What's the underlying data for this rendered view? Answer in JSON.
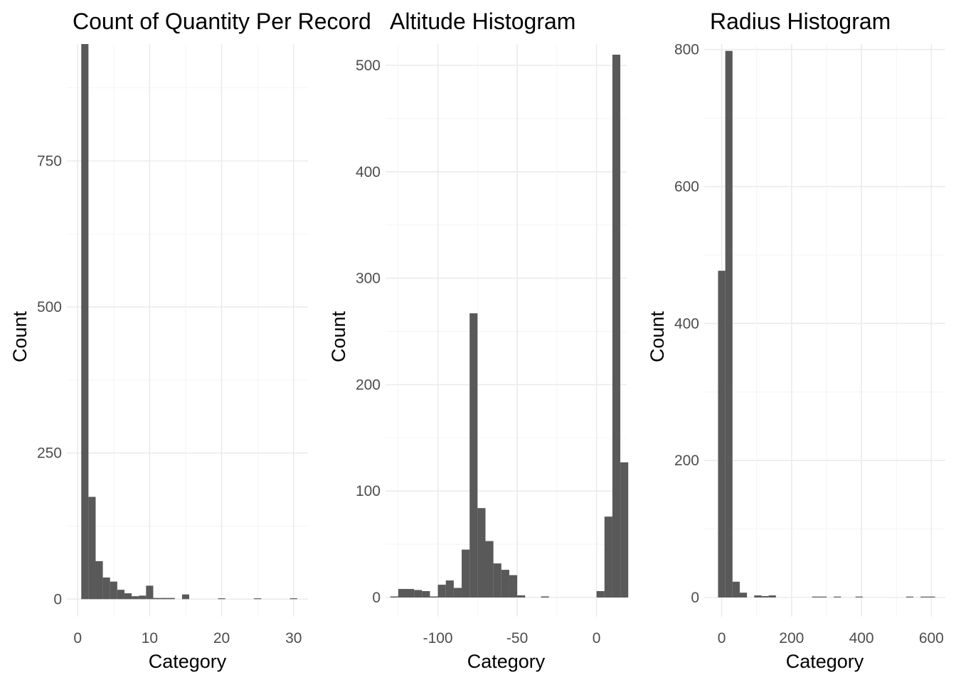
{
  "chart_data": [
    {
      "type": "bar",
      "title": "Count of Quantity Per Record",
      "xlabel": "Category",
      "ylabel": "Count",
      "xlim": [
        -1.5,
        32.0
      ],
      "ylim": [
        -30,
        950
      ],
      "xticks": [
        0,
        10,
        20,
        30
      ],
      "yticks": [
        0,
        250,
        500,
        750
      ],
      "grid": true,
      "bin_width": 1.0,
      "x": [
        1,
        2,
        3,
        4,
        5,
        6,
        7,
        8,
        9,
        10,
        11,
        12,
        13,
        14,
        15,
        16,
        17,
        18,
        19,
        20,
        21,
        22,
        23,
        24,
        25,
        26,
        27,
        28,
        29,
        30
      ],
      "values": [
        950,
        175,
        65,
        37,
        30,
        16,
        10,
        5,
        6,
        23,
        2,
        2,
        2,
        0,
        8,
        0,
        0,
        0,
        0,
        1,
        0,
        0,
        0,
        0,
        1,
        0,
        0,
        0,
        0,
        1
      ]
    },
    {
      "type": "bar",
      "title": "Altitude Histogram",
      "xlabel": "Category",
      "ylabel": "Count",
      "xlim": [
        -133,
        19
      ],
      "ylim": [
        -18,
        520
      ],
      "xticks": [
        -100,
        -50,
        0
      ],
      "xtick_labels": [
        "-100",
        "-50",
        "0"
      ],
      "yticks": [
        0,
        100,
        200,
        300,
        400,
        500
      ],
      "grid": true,
      "bin_width": 5.0,
      "x": [
        -127.5,
        -122.5,
        -117.5,
        -112.5,
        -107.5,
        -102.5,
        -97.5,
        -92.5,
        -87.5,
        -82.5,
        -77.5,
        -72.5,
        -67.5,
        -62.5,
        -57.5,
        -52.5,
        -47.5,
        -42.5,
        -37.5,
        -32.5,
        -27.5,
        -22.5,
        -17.5,
        -12.5,
        -7.5,
        -2.5,
        2.5,
        7.5,
        12.5,
        17.5
      ],
      "values": [
        1,
        8,
        8,
        7,
        6,
        1,
        12,
        16,
        9,
        45,
        267,
        84,
        53,
        32,
        26,
        21,
        2,
        0,
        0,
        1,
        0,
        0,
        0,
        0,
        0,
        0,
        6,
        76,
        510,
        127
      ]
    },
    {
      "type": "bar",
      "title": "Radius Histogram",
      "xlabel": "Category",
      "ylabel": "Count",
      "xlim": [
        -50,
        640
      ],
      "ylim": [
        -28,
        808
      ],
      "xticks": [
        0,
        200,
        400,
        600
      ],
      "yticks": [
        0,
        200,
        400,
        600,
        800
      ],
      "grid": true,
      "bin_width": 20.7,
      "x": [
        0,
        20.7,
        41.4,
        62.1,
        82.8,
        103.5,
        124.2,
        144.9,
        165.6,
        186.3,
        207,
        227.7,
        248.4,
        269.1,
        289.8,
        310.5,
        331.2,
        351.9,
        372.6,
        393.3,
        414,
        434.7,
        455.4,
        476.1,
        496.8,
        517.5,
        538.2,
        558.9,
        579.6,
        600.3
      ],
      "values": [
        477,
        798,
        23,
        7,
        0,
        3,
        2,
        3,
        0,
        0,
        0,
        0,
        0,
        1,
        1,
        0,
        1,
        0,
        0,
        1,
        0,
        0,
        0,
        0,
        0,
        0,
        1,
        0,
        1,
        1
      ]
    }
  ]
}
